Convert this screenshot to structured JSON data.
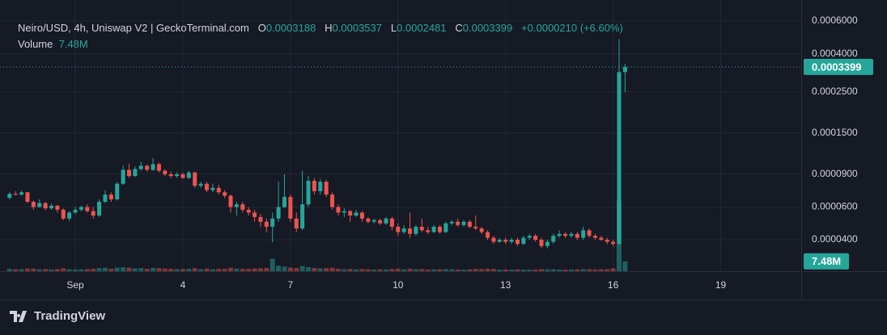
{
  "chart_data": {
    "type": "candlestick",
    "title": "Neiro/USD, 4h, Uniswap V2 | GeckoTerminal.com",
    "ohlc_labels": [
      "O",
      "H",
      "L",
      "C"
    ],
    "change": "+0.0000210 (+6.60%)",
    "volume_name": "Volume",
    "volume_label": "7.48M",
    "source": "TradingView",
    "log_scale": true,
    "grid": true,
    "colors": {
      "up": "#26a69a",
      "down": "#ef5350",
      "up_volume": "rgba(38,166,154,0.5)",
      "down_volume": "rgba(239,83,80,0.5)"
    },
    "xlim": [
      -50.4,
      485.9
    ],
    "xticks": [
      {
        "value": 0,
        "label": "Sep"
      },
      {
        "value": 72,
        "label": "4"
      },
      {
        "value": 144,
        "label": "7"
      },
      {
        "value": 216,
        "label": "10"
      },
      {
        "value": 288,
        "label": "13"
      },
      {
        "value": 360,
        "label": "16"
      },
      {
        "value": 432,
        "label": "19"
      }
    ],
    "ylim": [
      2.71e-05,
      0.000704
    ],
    "yticks": [
      {
        "value": 0.0006,
        "label": "0.0006000"
      },
      {
        "value": 0.0004,
        "label": "0.0004000"
      },
      {
        "value": 0.00025,
        "label": "0.0002500"
      },
      {
        "value": 0.00015,
        "label": "0.0001500"
      },
      {
        "value": 9e-05,
        "label": "0.0000900"
      },
      {
        "value": 6e-05,
        "label": "0.0000600"
      },
      {
        "value": 4e-05,
        "label": "0.0000400"
      }
    ],
    "volume_ylim": [
      0,
      200000000
    ],
    "x": [
      -44,
      -40,
      -36,
      -32,
      -28,
      -24,
      -20,
      -16,
      -12,
      -8,
      -4,
      0,
      4,
      8,
      12,
      16,
      20,
      24,
      28,
      32,
      36,
      40,
      44,
      48,
      52,
      56,
      60,
      64,
      68,
      72,
      76,
      80,
      84,
      88,
      92,
      96,
      100,
      104,
      108,
      112,
      116,
      120,
      124,
      128,
      132,
      136,
      140,
      144,
      148,
      152,
      156,
      160,
      164,
      168,
      172,
      176,
      180,
      184,
      188,
      192,
      196,
      200,
      204,
      208,
      212,
      216,
      220,
      224,
      228,
      232,
      236,
      240,
      244,
      248,
      252,
      256,
      260,
      264,
      268,
      272,
      276,
      280,
      284,
      288,
      292,
      296,
      300,
      304,
      308,
      312,
      316,
      320,
      324,
      328,
      332,
      336,
      340,
      344,
      348,
      352,
      356,
      360,
      364,
      368
    ],
    "candles": [
      [
        6.72e-05,
        7.2e-05,
        6.6e-05,
        7.06e-05
      ],
      [
        7.06e-05,
        7.3e-05,
        6.9e-05,
        7e-05
      ],
      [
        7e-05,
        7.35e-05,
        6.9e-05,
        7.2e-05
      ],
      [
        7.2e-05,
        7.25e-05,
        6.3e-05,
        6.4e-05
      ],
      [
        6.4e-05,
        6.5e-05,
        5.8e-05,
        6e-05
      ],
      [
        6e-05,
        6.6e-05,
        5.95e-05,
        6.3e-05
      ],
      [
        6.3e-05,
        6.4e-05,
        5.75e-05,
        5.9e-05
      ],
      [
        5.9e-05,
        6.25e-05,
        5.8e-05,
        6.1e-05
      ],
      [
        6.1e-05,
        6.15e-05,
        5.6e-05,
        5.8e-05
      ],
      [
        5.8e-05,
        5.9e-05,
        5.1e-05,
        5.2e-05
      ],
      [
        5.2e-05,
        5.7e-05,
        5.05e-05,
        5.6e-05
      ],
      [
        5.6e-05,
        6e-05,
        5.5e-05,
        5.8e-05
      ],
      [
        5.8e-05,
        6.1e-05,
        5.7e-05,
        6e-05
      ],
      [
        6e-05,
        6.2e-05,
        5.6e-05,
        5.7e-05
      ],
      [
        5.7e-05,
        6e-05,
        5.2e-05,
        5.4e-05
      ],
      [
        5.4e-05,
        6.6e-05,
        5.3e-05,
        6.4e-05
      ],
      [
        6.4e-05,
        7.4e-05,
        6.3e-05,
        7e-05
      ],
      [
        7e-05,
        7.2e-05,
        6.4e-05,
        6.6e-05
      ],
      [
        6.6e-05,
        8.2e-05,
        6.5e-05,
        8e-05
      ],
      [
        8e-05,
        0.0001,
        7.9e-05,
        9.5e-05
      ],
      [
        9.5e-05,
        0.000102,
        8.6e-05,
        8.8e-05
      ],
      [
        8.8e-05,
        9.9e-05,
        8.7e-05,
        9.6e-05
      ],
      [
        9.6e-05,
        0.000105,
        9.4e-05,
        0.0001
      ],
      [
        0.0001,
        0.000101,
        9.3e-05,
        9.5e-05
      ],
      [
        9.5e-05,
        0.00011,
        9.4e-05,
        0.000102
      ],
      [
        0.000102,
        0.000104,
        9.2e-05,
        9.4e-05
      ],
      [
        9.4e-05,
        9.6e-05,
        8.8e-05,
        9e-05
      ],
      [
        9e-05,
        9.3e-05,
        8.6e-05,
        8.8e-05
      ],
      [
        8.8e-05,
        9.2e-05,
        8.6e-05,
        9e-05
      ],
      [
        9e-05,
        9.2e-05,
        8.5e-05,
        8.6e-05
      ],
      [
        8.6e-05,
        9.4e-05,
        8.5e-05,
        9.2e-05
      ],
      [
        9.2e-05,
        9.3e-05,
        7.6e-05,
        7.8e-05
      ],
      [
        7.8e-05,
        8.2e-05,
        7.6e-05,
        8e-05
      ],
      [
        8e-05,
        8.2e-05,
        7.2e-05,
        7.4e-05
      ],
      [
        7.4e-05,
        8e-05,
        7.2e-05,
        7.6e-05
      ],
      [
        7.6e-05,
        7.9e-05,
        7e-05,
        7.2e-05
      ],
      [
        7.2e-05,
        7.4e-05,
        6.7e-05,
        6.9e-05
      ],
      [
        6.9e-05,
        7e-05,
        5.6e-05,
        6e-05
      ],
      [
        6e-05,
        6.4e-05,
        5.4e-05,
        6.2e-05
      ],
      [
        6.2e-05,
        6.4e-05,
        5.6e-05,
        5.8e-05
      ],
      [
        5.8e-05,
        6e-05,
        5.4e-05,
        5.6e-05
      ],
      [
        5.6e-05,
        5.8e-05,
        5e-05,
        5.3e-05
      ],
      [
        5.3e-05,
        5.5e-05,
        4.7e-05,
        5e-05
      ],
      [
        5e-05,
        5.2e-05,
        4.4e-05,
        4.7e-05
      ],
      [
        4.7e-05,
        5.6e-05,
        3.88e-05,
        5.2e-05
      ],
      [
        5.2e-05,
        8.2e-05,
        5e-05,
        6e-05
      ],
      [
        6e-05,
        9e-05,
        5.9e-05,
        6.8e-05
      ],
      [
        6.8e-05,
        7e-05,
        5e-05,
        5.2e-05
      ],
      [
        5.2e-05,
        5.6e-05,
        4.4e-05,
        4.6e-05
      ],
      [
        4.6e-05,
        9.4e-05,
        4.5e-05,
        6.2e-05
      ],
      [
        6.2e-05,
        8.8e-05,
        6e-05,
        8.3e-05
      ],
      [
        8.3e-05,
        8.6e-05,
        7e-05,
        7.3e-05
      ],
      [
        7.3e-05,
        8.5e-05,
        7e-05,
        8.2e-05
      ],
      [
        8.2e-05,
        8.4e-05,
        6.8e-05,
        7e-05
      ],
      [
        7e-05,
        7.2e-05,
        5.8e-05,
        6e-05
      ],
      [
        6e-05,
        6.2e-05,
        5.4e-05,
        5.6e-05
      ],
      [
        5.6e-05,
        5.9e-05,
        5.3e-05,
        5.7e-05
      ],
      [
        5.7e-05,
        5.8e-05,
        5e-05,
        5.4e-05
      ],
      [
        5.4e-05,
        5.8e-05,
        5.3e-05,
        5.6e-05
      ],
      [
        5.6e-05,
        5.7e-05,
        5e-05,
        5.2e-05
      ],
      [
        5.2e-05,
        5.3e-05,
        4.9e-05,
        5e-05
      ],
      [
        5e-05,
        5.2e-05,
        4.9e-05,
        5.1e-05
      ],
      [
        5.1e-05,
        5.2e-05,
        4.8e-05,
        4.9e-05
      ],
      [
        4.9e-05,
        5.3e-05,
        4.8e-05,
        5.2e-05
      ],
      [
        5.2e-05,
        5.3e-05,
        4.5e-05,
        4.7e-05
      ],
      [
        4.7e-05,
        4.9e-05,
        4.2e-05,
        4.4e-05
      ],
      [
        4.4e-05,
        4.8e-05,
        4.3e-05,
        4.6e-05
      ],
      [
        4.6e-05,
        5.6e-05,
        4.1e-05,
        4.3e-05
      ],
      [
        4.3e-05,
        4.8e-05,
        4.2e-05,
        4.7e-05
      ],
      [
        4.7e-05,
        5.2e-05,
        4.4e-05,
        4.5e-05
      ],
      [
        4.5e-05,
        4.7e-05,
        4.3e-05,
        4.4e-05
      ],
      [
        4.4e-05,
        4.8e-05,
        4.35e-05,
        4.7e-05
      ],
      [
        4.7e-05,
        4.8e-05,
        4.3e-05,
        4.4e-05
      ],
      [
        4.4e-05,
        5e-05,
        4.35e-05,
        4.9e-05
      ],
      [
        4.9e-05,
        5.1e-05,
        4.8e-05,
        5e-05
      ],
      [
        5e-05,
        5.2e-05,
        4.7e-05,
        4.8e-05
      ],
      [
        4.8e-05,
        5.1e-05,
        4.7e-05,
        5e-05
      ],
      [
        5e-05,
        5.1e-05,
        4.6e-05,
        4.7e-05
      ],
      [
        4.7e-05,
        5.4e-05,
        4.5e-05,
        4.6e-05
      ],
      [
        4.6e-05,
        4.7e-05,
        4.3e-05,
        4.4e-05
      ],
      [
        4.4e-05,
        4.5e-05,
        4e-05,
        4.1e-05
      ],
      [
        4.1e-05,
        4.2e-05,
        3.8e-05,
        3.9e-05
      ],
      [
        3.9e-05,
        4.1e-05,
        3.85e-05,
        4e-05
      ],
      [
        4e-05,
        4.1e-05,
        3.8e-05,
        3.9e-05
      ],
      [
        3.9e-05,
        4.1e-05,
        3.8e-05,
        4e-05
      ],
      [
        4e-05,
        4.1e-05,
        3.7e-05,
        3.8e-05
      ],
      [
        3.8e-05,
        4.2e-05,
        3.75e-05,
        4.1e-05
      ],
      [
        4.1e-05,
        4.3e-05,
        4e-05,
        4.2e-05
      ],
      [
        4.2e-05,
        4.3e-05,
        3.9e-05,
        4e-05
      ],
      [
        4e-05,
        4.1e-05,
        3.6e-05,
        3.7e-05
      ],
      [
        3.7e-05,
        4e-05,
        3.6e-05,
        3.9e-05
      ],
      [
        3.9e-05,
        4.3e-05,
        3.8e-05,
        4.2e-05
      ],
      [
        4.2e-05,
        4.5e-05,
        4.1e-05,
        4.3e-05
      ],
      [
        4.3e-05,
        4.4e-05,
        4.1e-05,
        4.2e-05
      ],
      [
        4.2e-05,
        4.4e-05,
        4.1e-05,
        4.3e-05
      ],
      [
        4.3e-05,
        4.4e-05,
        4e-05,
        4.1e-05
      ],
      [
        4.1e-05,
        4.7e-05,
        4e-05,
        4.5e-05
      ],
      [
        4.5e-05,
        4.6e-05,
        4.1e-05,
        4.2e-05
      ],
      [
        4.2e-05,
        4.3e-05,
        4e-05,
        4.1e-05
      ],
      [
        4.1e-05,
        4.2e-05,
        3.95e-05,
        4e-05
      ],
      [
        4e-05,
        4.1e-05,
        3.8e-05,
        3.9e-05
      ],
      [
        3.9e-05,
        4e-05,
        3.7e-05,
        3.8e-05
      ],
      [
        3.8e-05,
        0.00048,
        3.75e-05,
        0.0003188
      ],
      [
        0.0003188,
        0.0003537,
        0.0002481,
        0.0003399
      ]
    ],
    "volume": [
      1800000,
      1500000,
      1600000,
      2100000,
      2000000,
      1400000,
      1700000,
      1300000,
      1600000,
      2200000,
      1500000,
      1300000,
      1400000,
      1600000,
      1800000,
      2400000,
      2600000,
      1900000,
      2800000,
      3000000,
      2600000,
      2200000,
      2400000,
      1900000,
      2500000,
      2300000,
      2000000,
      1800000,
      1600000,
      1700000,
      1900000,
      2400000,
      1600000,
      2000000,
      1500000,
      1800000,
      1900000,
      2600000,
      2000000,
      1700000,
      1800000,
      2100000,
      2300000,
      2500000,
      9500000,
      4200000,
      3600000,
      2800000,
      2400000,
      4000000,
      3100000,
      2500000,
      2200000,
      2400000,
      2600000,
      1900000,
      1500000,
      1800000,
      1400000,
      1600000,
      1500000,
      1300000,
      1400000,
      1300000,
      1700000,
      1900000,
      1400000,
      2000000,
      1500000,
      1600000,
      1300000,
      1400000,
      1500000,
      1600000,
      1400000,
      1300000,
      1200000,
      1500000,
      1700000,
      1600000,
      1900000,
      1800000,
      1200000,
      1300000,
      1200000,
      1400000,
      1300000,
      1200000,
      1300000,
      1600000,
      1400000,
      1500000,
      1300000,
      1200000,
      1300000,
      1400000,
      1600000,
      1500000,
      1400000,
      1500000,
      1600000,
      2200000,
      54000000,
      7480000
    ]
  }
}
